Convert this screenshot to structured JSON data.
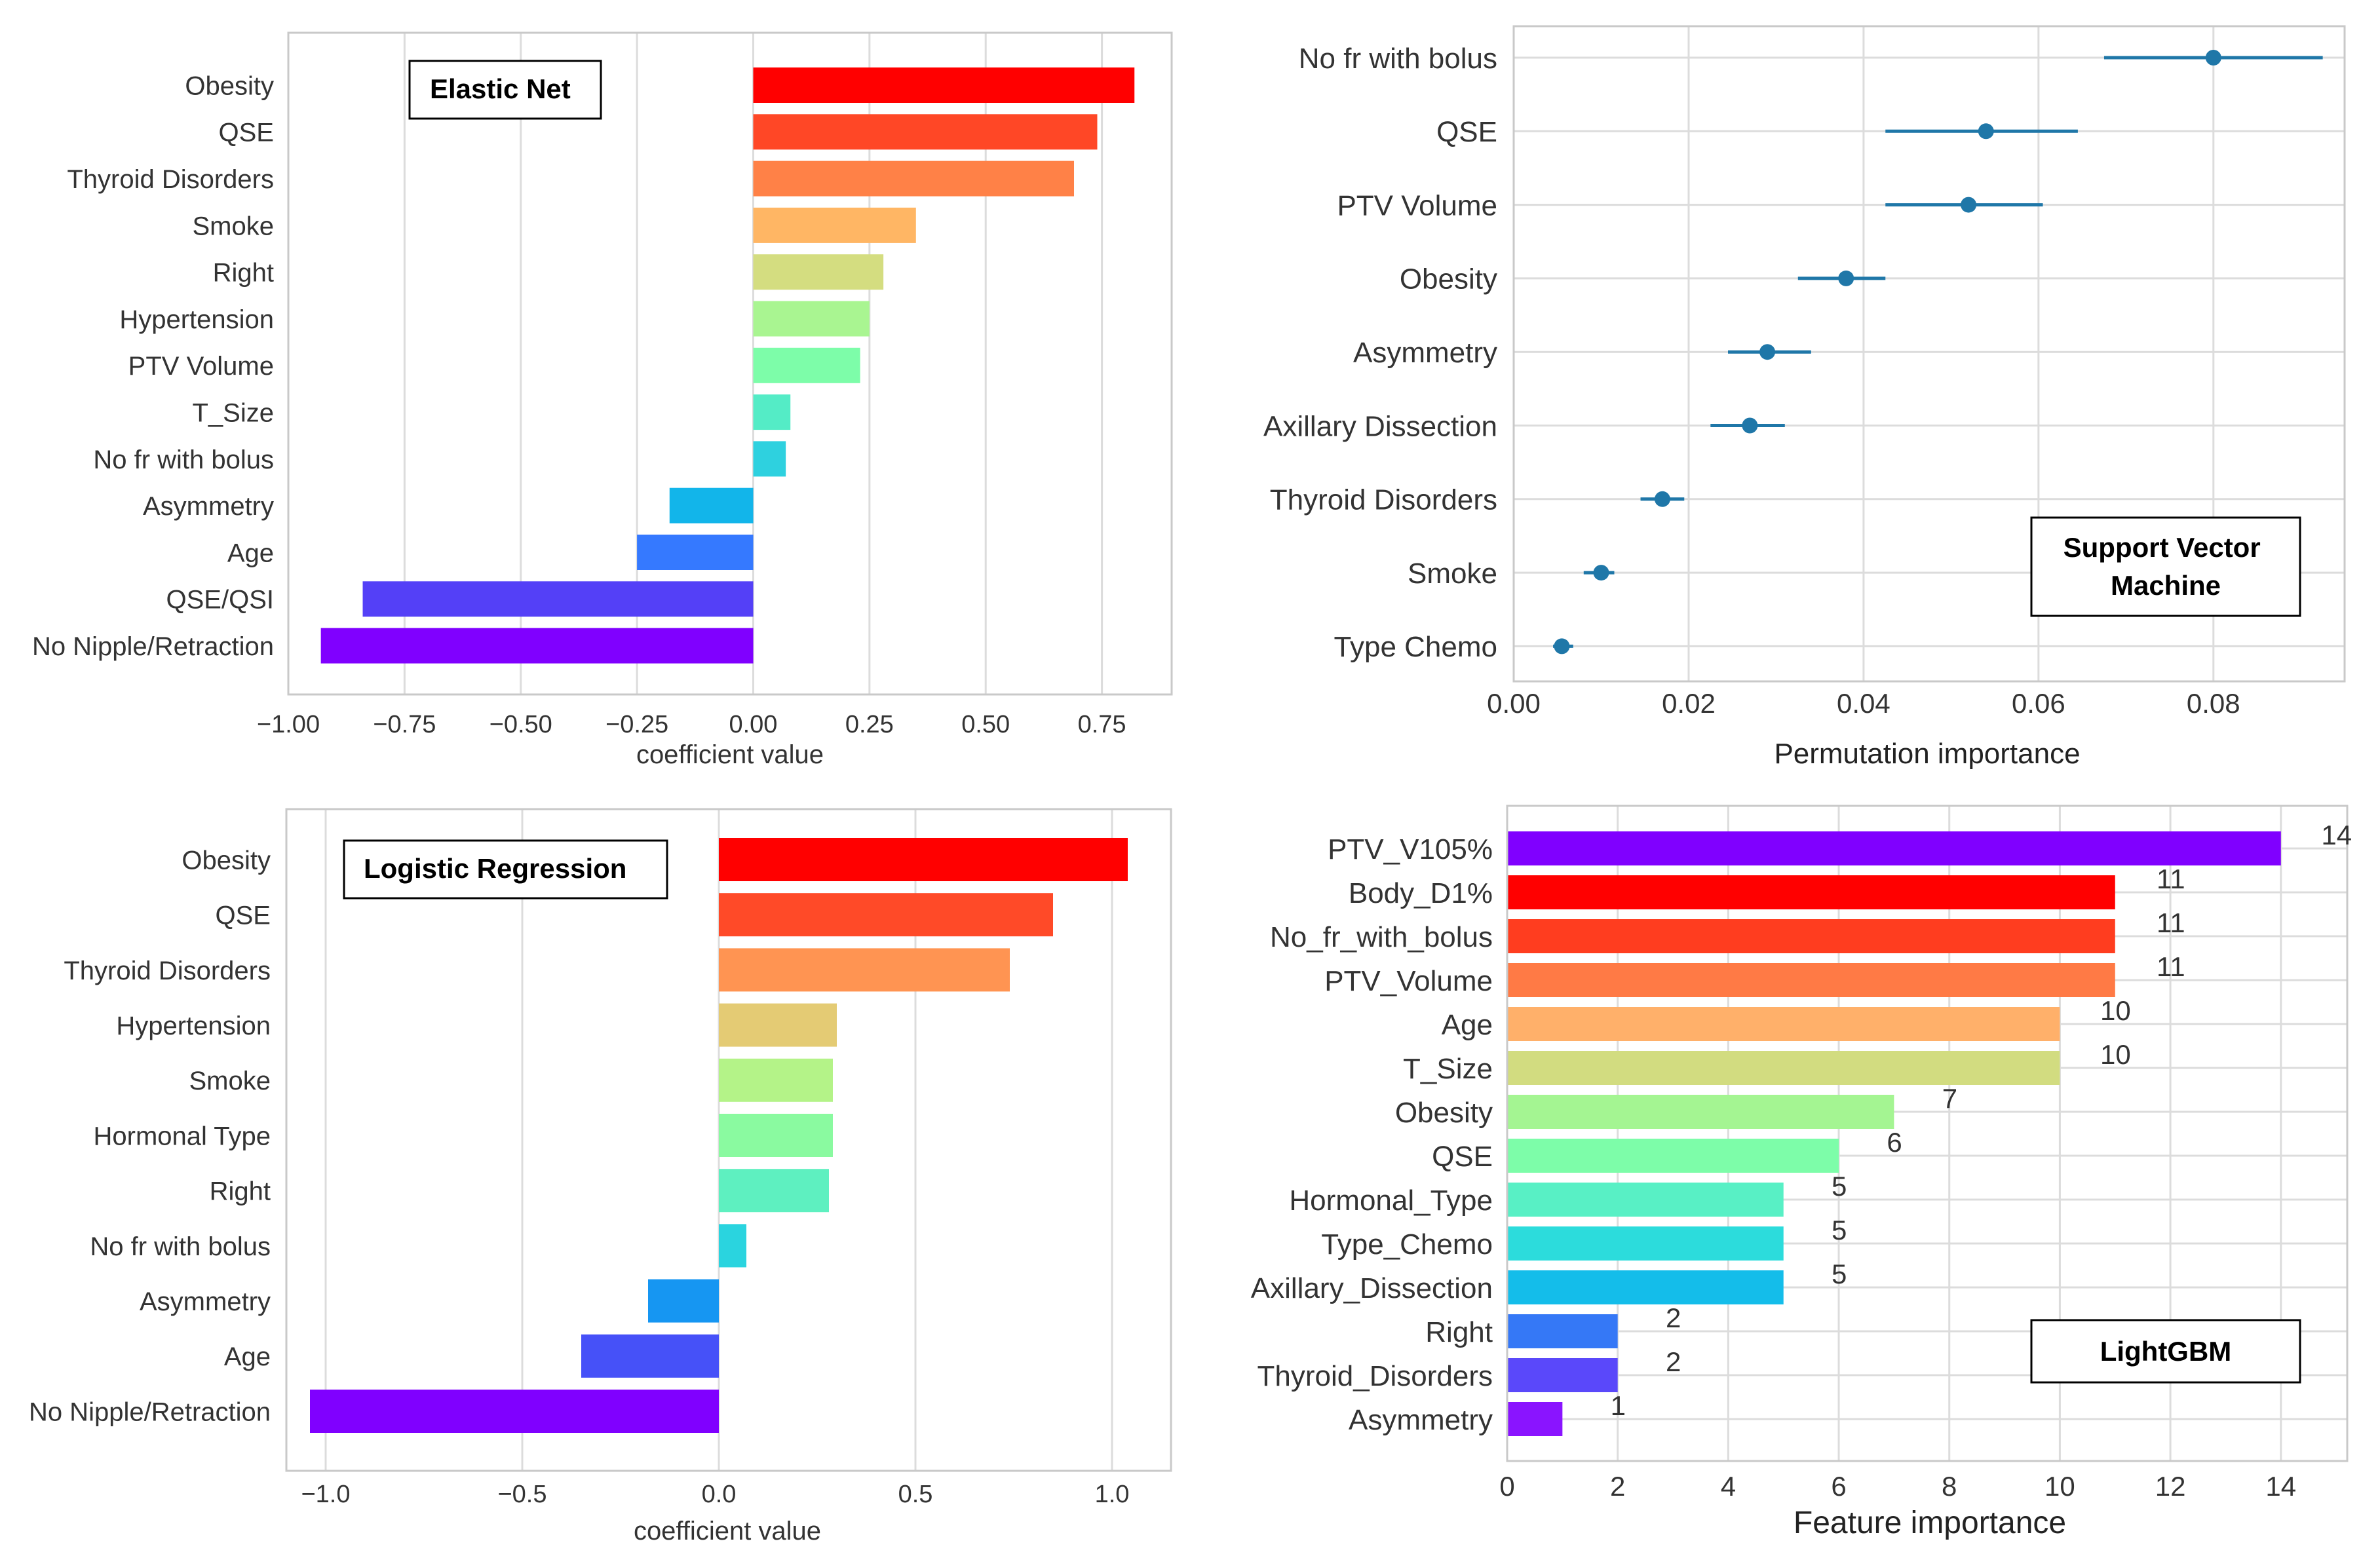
{
  "chart_data": [
    {
      "id": "elastic-net",
      "type": "bar",
      "orientation": "horizontal",
      "title": "Elastic Net",
      "xlabel": "coefficient value",
      "ylabel": "",
      "xlim": [
        -1.0,
        0.9
      ],
      "xticks": [
        -1.0,
        -0.75,
        -0.5,
        -0.25,
        0.0,
        0.25,
        0.5,
        0.75
      ],
      "xtick_labels": [
        "−1.00",
        "−0.75",
        "−0.50",
        "−0.25",
        "0.00",
        "0.25",
        "0.50",
        "0.75"
      ],
      "categories": [
        "Obesity",
        "QSE",
        "Thyroid Disorders",
        "Smoke",
        "Right",
        "Hypertension",
        "PTV Volume",
        "T_Size",
        "No fr with bolus",
        "Asymmetry",
        "Age",
        "QSE/QSI",
        "No Nipple/Retraction"
      ],
      "values": [
        0.82,
        0.74,
        0.69,
        0.35,
        0.28,
        0.25,
        0.23,
        0.08,
        0.07,
        -0.18,
        -0.25,
        -0.84,
        -0.93
      ],
      "colors": [
        "#ff0000",
        "#ff4726",
        "#ff8147",
        "#ffb664",
        "#d4dd80",
        "#a9f591",
        "#7dfda9",
        "#54ecc6",
        "#2ed1df",
        "#12b5ea",
        "#3579ff",
        "#5440f7",
        "#8000ff"
      ],
      "grid": true
    },
    {
      "id": "svm",
      "type": "scatter",
      "orientation": "horizontal",
      "title": "Support Vector Machine",
      "xlabel": "Permutation importance",
      "ylabel": "",
      "xlim": [
        0.0,
        0.095
      ],
      "xticks": [
        0.0,
        0.02,
        0.04,
        0.06,
        0.08
      ],
      "xtick_labels": [
        "0.00",
        "0.02",
        "0.04",
        "0.06",
        "0.08"
      ],
      "categories": [
        "No fr with bolus",
        "QSE",
        "PTV Volume",
        "Obesity",
        "Asymmetry",
        "Axillary Dissection",
        "Thyroid Disorders",
        "Smoke",
        "Type Chemo"
      ],
      "values": [
        0.08,
        0.054,
        0.052,
        0.038,
        0.029,
        0.027,
        0.017,
        0.01,
        0.0055
      ],
      "err_low": [
        0.0675,
        0.0425,
        0.0425,
        0.0325,
        0.0245,
        0.0225,
        0.0145,
        0.008,
        0.0045
      ],
      "err_high": [
        0.0925,
        0.0645,
        0.0605,
        0.0425,
        0.034,
        0.031,
        0.0195,
        0.0115,
        0.0068
      ],
      "point_color": "#1f77a8",
      "grid": true
    },
    {
      "id": "logistic-regression",
      "type": "bar",
      "orientation": "horizontal",
      "title": "Logistic Regression",
      "xlabel": "coefficient value",
      "ylabel": "",
      "xlim": [
        -1.1,
        1.15
      ],
      "xticks": [
        -1.0,
        -0.5,
        0.0,
        0.5,
        1.0
      ],
      "xtick_labels": [
        "−1.0",
        "−0.5",
        "0.0",
        "0.5",
        "1.0"
      ],
      "categories": [
        "Obesity",
        "QSE",
        "Thyroid Disorders",
        "Hypertension",
        "Smoke",
        "Hormonal Type",
        "Right",
        "No fr with bolus",
        "Asymmetry",
        "Age",
        "No Nipple/Retraction"
      ],
      "values": [
        1.04,
        0.85,
        0.74,
        0.3,
        0.29,
        0.29,
        0.28,
        0.07,
        -0.18,
        -0.35,
        -1.04
      ],
      "colors": [
        "#ff0000",
        "#ff4a28",
        "#ff9452",
        "#e4cb74",
        "#b4f388",
        "#8afaa0",
        "#5ef0c0",
        "#2ad4df",
        "#1696f2",
        "#4651f8",
        "#8000ff"
      ],
      "grid": true
    },
    {
      "id": "lightgbm",
      "type": "bar",
      "orientation": "horizontal",
      "title": "LightGBM",
      "xlabel": "Feature importance",
      "ylabel": "",
      "xlim": [
        0,
        15.2
      ],
      "xticks": [
        0,
        2,
        4,
        6,
        8,
        10,
        12,
        14
      ],
      "xtick_labels": [
        "0",
        "2",
        "4",
        "6",
        "8",
        "10",
        "12",
        "14"
      ],
      "categories": [
        "PTV_V105%",
        "Body_D1%",
        "No_fr_with_bolus",
        "PTV_Volume",
        "Age",
        "T_Size",
        "Obesity",
        "QSE",
        "Hormonal_Type",
        "Type_Chemo",
        "Axillary_Dissection",
        "Right",
        "Thyroid_Disorders",
        "Asymmetry"
      ],
      "values": [
        14,
        11,
        11,
        11,
        10,
        10,
        7,
        6,
        5,
        5,
        5,
        2,
        2,
        1
      ],
      "value_labels": [
        "14",
        "11",
        "11",
        "11",
        "10",
        "10",
        "7",
        "6",
        "5",
        "5",
        "5",
        "2",
        "2",
        "1"
      ],
      "colors": [
        "#8000ff",
        "#ff0000",
        "#ff3d1f",
        "#ff7a45",
        "#ffb06a",
        "#d2dc80",
        "#a4f592",
        "#7dfda9",
        "#58f0c5",
        "#2cdcdc",
        "#14bdea",
        "#3578f6",
        "#5a48fa",
        "#8a14ff"
      ],
      "grid": true
    }
  ]
}
